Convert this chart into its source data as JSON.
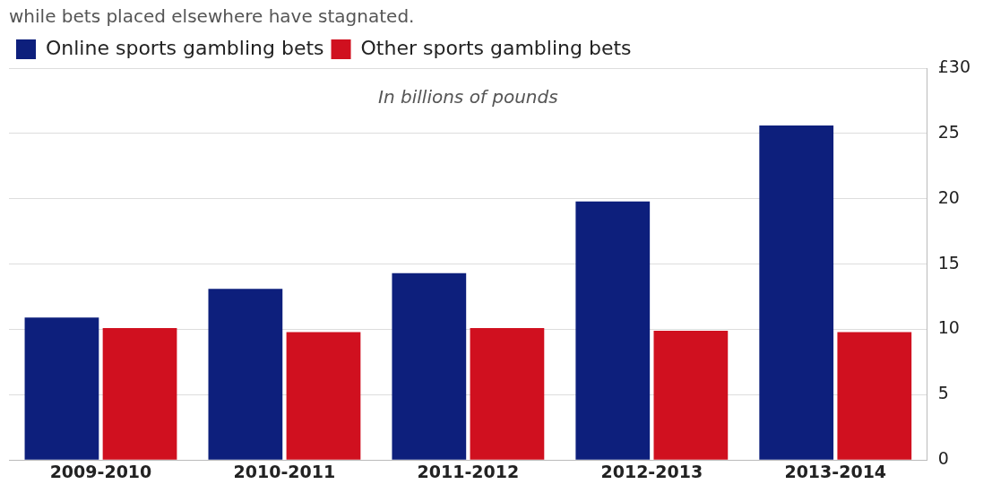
{
  "chart_data": {
    "type": "bar",
    "subtitle": "while bets placed elsewhere have stagnated.",
    "annotations": [
      "In billions of pounds"
    ],
    "categories": [
      "2009-2010",
      "2010-2011",
      "2011-2012",
      "2012-2013",
      "2013-2014"
    ],
    "series": [
      {
        "name": "Online sports gambling bets",
        "color": "#0d1f7c",
        "values": [
          10.9,
          13.1,
          14.3,
          19.8,
          25.6
        ]
      },
      {
        "name": "Other sports gambling bets",
        "color": "#d0101f",
        "values": [
          10.1,
          9.8,
          10.1,
          9.9,
          9.8
        ]
      }
    ],
    "ylim": [
      0,
      30
    ],
    "yticks": [
      0,
      5,
      10,
      15,
      20,
      25,
      {
        "value": 30,
        "label": "£30"
      }
    ],
    "grid": "y",
    "legend": "top left"
  }
}
